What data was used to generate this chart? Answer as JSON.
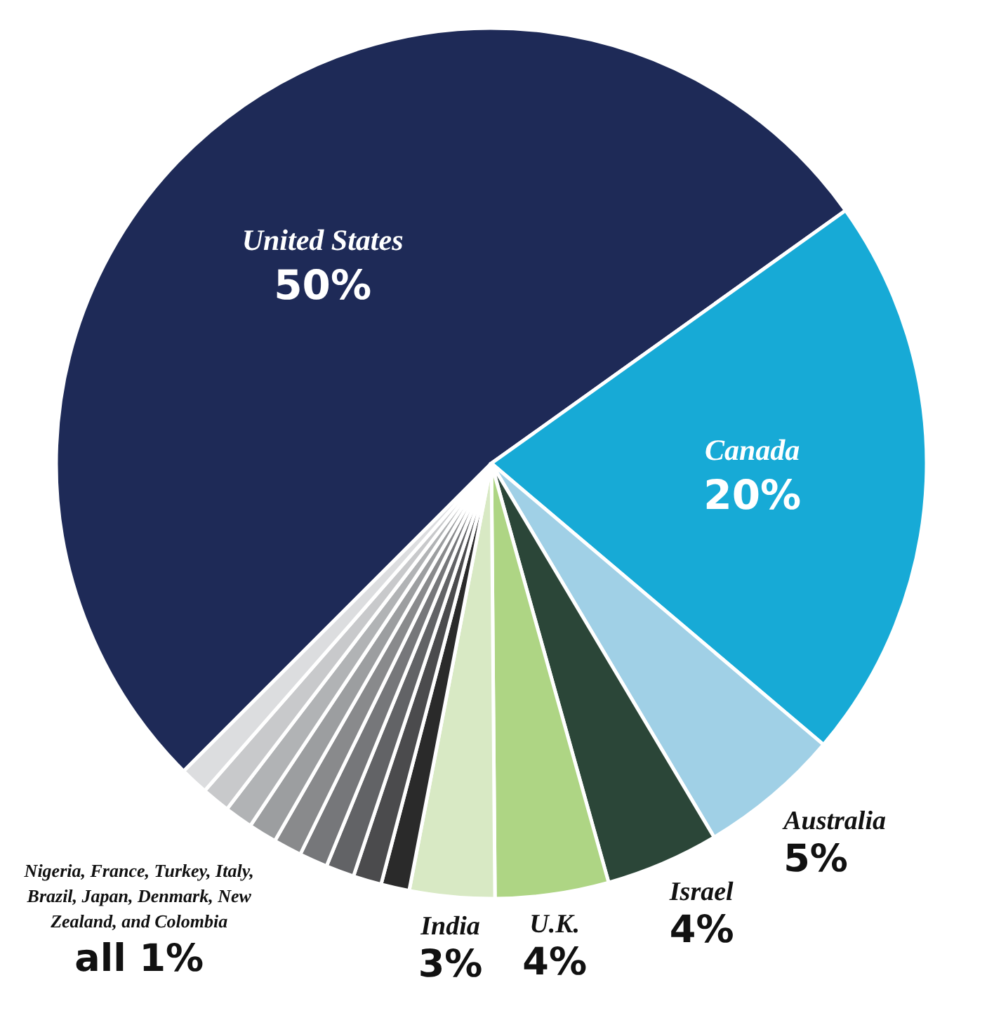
{
  "chart_data": {
    "type": "pie",
    "categories": [
      "United States",
      "Canada",
      "Australia",
      "Israel",
      "U.K.",
      "India",
      null,
      null,
      null,
      null,
      null,
      null,
      null,
      null,
      null
    ],
    "values": [
      50,
      20,
      5,
      4,
      4,
      3,
      1,
      1,
      1,
      1,
      1,
      1,
      1,
      1,
      1
    ],
    "value_labels": [
      "50%",
      "20%",
      "5%",
      "4%",
      "4%",
      "3%",
      null,
      null,
      null,
      null,
      null,
      null,
      null,
      null,
      null
    ],
    "colors": [
      "#1e2a57",
      "#17aad6",
      "#a0d0e6",
      "#2b4638",
      "#aed584",
      "#d8e9c4",
      "#2a2a2a",
      "#4b4b4d",
      "#626366",
      "#76777a",
      "#898a8c",
      "#9c9ea0",
      "#b1b3b5",
      "#c8c9cb",
      "#dcdddf"
    ],
    "annotations": [
      "Nigeria, France, Turkey, Italy, Brazil, Japan, Denmark, New Zealand, and Colombia",
      "all 1%"
    ]
  }
}
